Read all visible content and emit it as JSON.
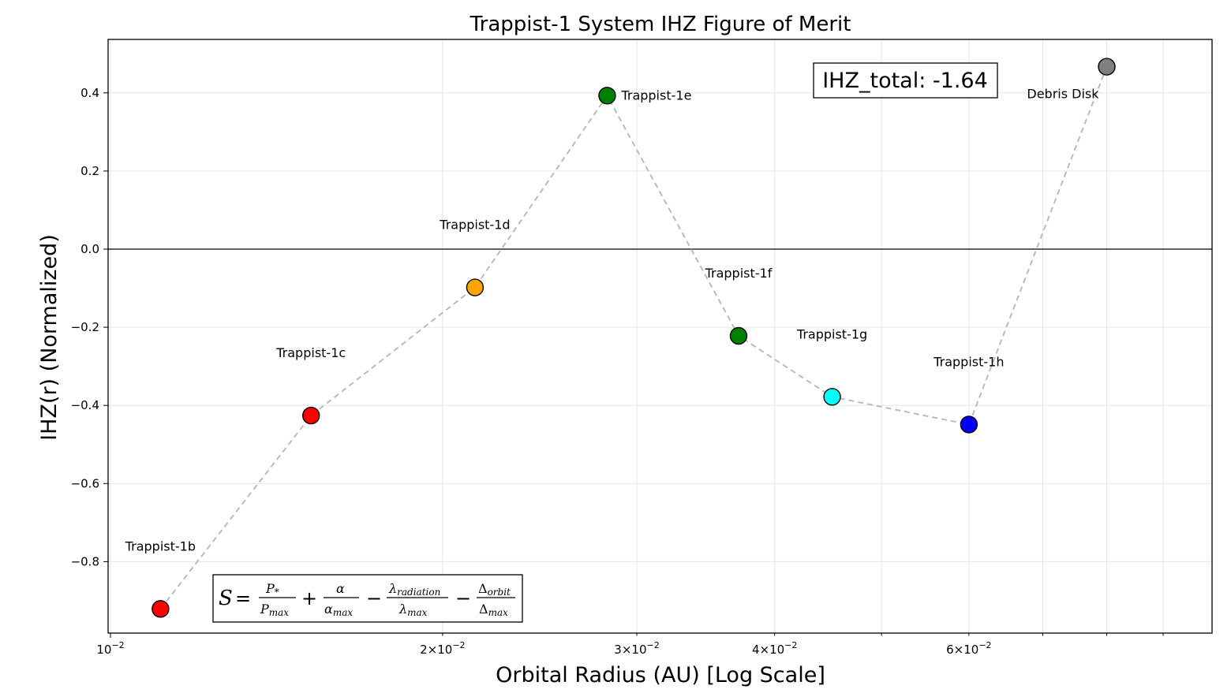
{
  "chart_data": {
    "type": "scatter",
    "title": "Trappist-1 System IHZ Figure of Merit",
    "xlabel": "Orbital Radius (AU) [Log Scale]",
    "ylabel": "IHZ(r) (Normalized)",
    "x_scale": "log",
    "xlim": [
      0.01,
      0.1
    ],
    "ylim": [
      -0.99,
      0.54
    ],
    "grid": true,
    "connect_points": "dashed gray line",
    "zero_line": true,
    "x_ticks": [
      {
        "value": 0.01,
        "base": "10",
        "exp": "−2",
        "mant": ""
      },
      {
        "value": 0.02,
        "base": "10",
        "exp": "−2",
        "mant": "2×"
      },
      {
        "value": 0.03,
        "base": "10",
        "exp": "−2",
        "mant": "3×"
      },
      {
        "value": 0.04,
        "base": "10",
        "exp": "−2",
        "mant": "4×"
      },
      {
        "value": 0.06,
        "base": "10",
        "exp": "−2",
        "mant": "6×"
      }
    ],
    "y_ticks": [
      {
        "value": 0.4,
        "label": "0.4"
      },
      {
        "value": 0.2,
        "label": "0.2"
      },
      {
        "value": 0.0,
        "label": "0.0"
      },
      {
        "value": -0.2,
        "label": "−0.2"
      },
      {
        "value": -0.4,
        "label": "−0.4"
      },
      {
        "value": -0.6,
        "label": "−0.6"
      },
      {
        "value": -0.8,
        "label": "−0.8"
      }
    ],
    "points": [
      {
        "name": "Trappist-1b",
        "x": 0.0111,
        "y": -0.921,
        "color": "#ff0000",
        "label_pos": "above"
      },
      {
        "name": "Trappist-1c",
        "x": 0.0152,
        "y": -0.426,
        "color": "#ff0000",
        "label_pos": "above"
      },
      {
        "name": "Trappist-1d",
        "x": 0.0214,
        "y": -0.098,
        "color": "#ffa500",
        "label_pos": "above"
      },
      {
        "name": "Trappist-1e",
        "x": 0.0282,
        "y": 0.393,
        "color": "#008000",
        "label_pos": "right"
      },
      {
        "name": "Trappist-1f",
        "x": 0.0371,
        "y": -0.222,
        "color": "#008000",
        "label_pos": "above"
      },
      {
        "name": "Trappist-1g",
        "x": 0.0451,
        "y": -0.378,
        "color": "#00ffff",
        "label_pos": "above"
      },
      {
        "name": "Trappist-1h",
        "x": 0.06,
        "y": -0.449,
        "color": "#0000ff",
        "label_pos": "above"
      },
      {
        "name": "Debris Disk",
        "x": 0.08,
        "y": 0.467,
        "color": "#808080",
        "label_pos": "below-left"
      }
    ],
    "ihz_total_label": "IHZ_total: -1.64",
    "formula": {
      "lhs": "S",
      "eq": "=",
      "t1_num": "P",
      "t1_num_sub": "*",
      "t1_den": "P",
      "t1_den_sub": "max",
      "plus": "+",
      "t2_num": "α",
      "t2_den": "α",
      "t2_den_sub": "max",
      "minus1": "−",
      "t3_num": "λ",
      "t3_num_sub": "radiation",
      "t3_den": "λ",
      "t3_den_sub": "max",
      "minus2": "−",
      "t4_num": "Δ",
      "t4_num_sub": "orbit",
      "t4_den": "Δ",
      "t4_den_sub": "max"
    }
  }
}
